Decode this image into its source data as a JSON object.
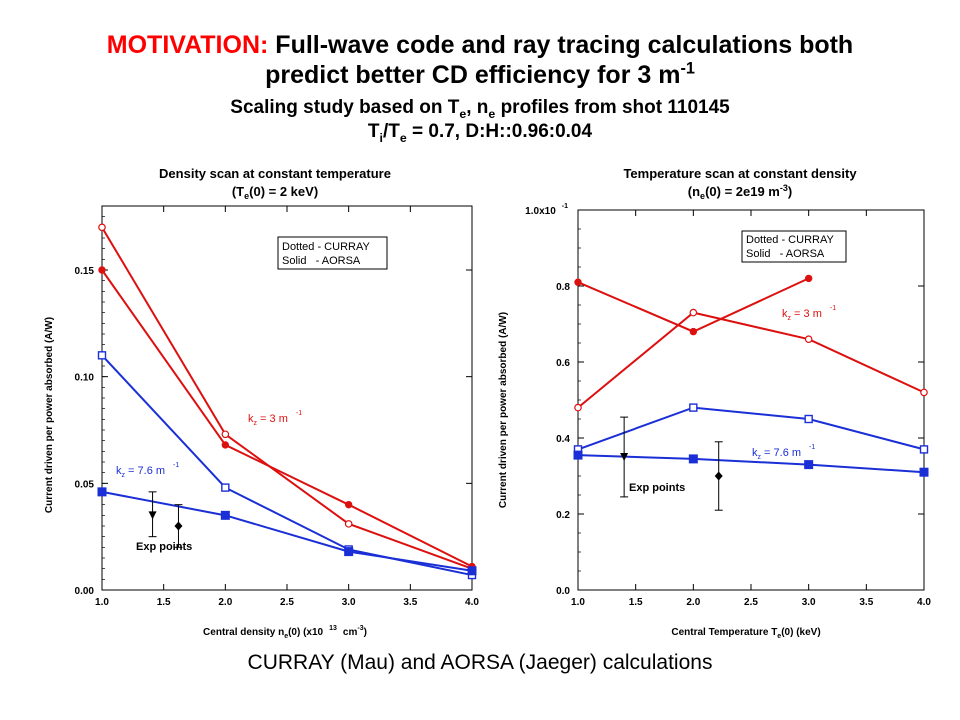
{
  "header": {
    "motivation_label": "MOTIVATION:",
    "title_line1": "Full-wave code and ray tracing calculations both",
    "title_line2": "predict better CD efficiency for 3 m",
    "title_line2_sup": "-1",
    "sub1_a": "Scaling study based on T",
    "sub1_sub1": "e",
    "sub1_b": ", n",
    "sub1_sub2": "e",
    "sub1_c": " profiles from shot 110145",
    "sub2_a": "T",
    "sub2_sub1": "i",
    "sub2_b": "/T",
    "sub2_sub2": "e",
    "sub2_c": " = 0.7, D:H::0.96:0.04"
  },
  "footer": {
    "text": "CURRAY (Mau) and AORSA (Jaeger) calculations"
  },
  "colors": {
    "accent_red": "#ff0000",
    "curray_aorsa_red": "#dd1010",
    "blue": "#1a2fd6"
  },
  "chart_data": [
    {
      "type": "line",
      "title_line1": "Density scan at constant temperature",
      "title_line2": "(T",
      "title_line2_sub": "e",
      "title_line2_rest": "(0) = 2 keV)",
      "xlabel": "Central density n",
      "xlabel_sub": "e",
      "xlabel_rest": "(0) (x10",
      "xlabel_sup": "13",
      "xlabel_unit": "cm",
      "xlabel_unit_sup": "-3",
      "xlabel_close": ")",
      "ylabel": "Current driven per power absorbed (A/W)",
      "xlim": [
        1.0,
        4.0
      ],
      "ylim": [
        0.0,
        0.18
      ],
      "xticks": [
        "1.0",
        "1.5",
        "2.0",
        "2.5",
        "3.0",
        "3.5",
        "4.0"
      ],
      "yticks": [
        "0.00",
        "0.05",
        "0.10",
        "0.15"
      ],
      "legend_line1": "Dotted - CURRAY",
      "legend_line2": "Solid   - AORSA",
      "series": [
        {
          "curve": "red-open",
          "color": "#dd1010",
          "marker": "open-circle",
          "x": [
            1.0,
            2.0,
            3.0,
            4.0
          ],
          "y": [
            0.17,
            0.073,
            0.031,
            0.01
          ]
        },
        {
          "curve": "red-filled",
          "color": "#dd1010",
          "marker": "filled-circle",
          "x": [
            1.0,
            2.0,
            3.0,
            4.0
          ],
          "y": [
            0.15,
            0.068,
            0.04,
            0.011
          ]
        },
        {
          "curve": "blue-open",
          "color": "#1a2fd6",
          "marker": "open-square",
          "x": [
            1.0,
            2.0,
            3.0,
            4.0
          ],
          "y": [
            0.11,
            0.048,
            0.019,
            0.007
          ]
        },
        {
          "curve": "blue-filled",
          "color": "#1a2fd6",
          "marker": "filled-square",
          "x": [
            1.0,
            2.0,
            3.0,
            4.0
          ],
          "y": [
            0.046,
            0.035,
            0.018,
            0.009
          ]
        }
      ],
      "annotations": {
        "k3_text": "k",
        "k3_sub": "z",
        "k3_rest": " = 3 m",
        "k3_sup": "-1",
        "k76_text": "k",
        "k76_sub": "z",
        "k76_rest": " = 7.6 m",
        "k76_sup": "-1",
        "exp_label": "Exp points"
      },
      "exp_points": [
        {
          "marker": "triangle-down",
          "x": 1.41,
          "y": 0.035,
          "err": [
            0.025,
            0.046
          ]
        },
        {
          "marker": "diamond",
          "x": 1.62,
          "y": 0.03,
          "err": [
            0.02,
            0.04
          ]
        }
      ]
    },
    {
      "type": "line",
      "title_line1": "Temperature scan at constant density",
      "title_line2": "(n",
      "title_line2_sub": "e",
      "title_line2_rest": "(0) = 2e19 m",
      "title_line2_sup": "-3",
      "title_line2_close": ")",
      "xlabel": "Central Temperature T",
      "xlabel_sub": "e",
      "xlabel_rest": "(0) (keV)",
      "ylabel": "Current driven per power absorbed (A/W)",
      "xlim": [
        1.0,
        4.0
      ],
      "ylim": [
        0.0,
        1.0
      ],
      "xticks": [
        "1.0",
        "1.5",
        "2.0",
        "2.5",
        "3.0",
        "3.5",
        "4.0"
      ],
      "yticks": [
        "0.0",
        "0.2",
        "0.4",
        "0.6",
        "0.8"
      ],
      "ytop_label": "1.0x10",
      "ytop_sup": "-1",
      "legend_line1": "Dotted - CURRAY",
      "legend_line2": "Solid   - AORSA",
      "series": [
        {
          "curve": "red-open",
          "color": "#dd1010",
          "marker": "open-circle",
          "x": [
            1.0,
            2.0,
            3.0,
            4.0
          ],
          "y": [
            0.48,
            0.73,
            0.66,
            0.52
          ]
        },
        {
          "curve": "red-filled",
          "color": "#dd1010",
          "marker": "filled-circle",
          "x": [
            1.0,
            2.0,
            3.0
          ],
          "y": [
            0.81,
            0.68,
            0.82
          ]
        },
        {
          "curve": "blue-open",
          "color": "#1a2fd6",
          "marker": "open-square",
          "x": [
            1.0,
            2.0,
            3.0,
            4.0
          ],
          "y": [
            0.37,
            0.48,
            0.45,
            0.37
          ]
        },
        {
          "curve": "blue-filled",
          "color": "#1a2fd6",
          "marker": "filled-square",
          "x": [
            1.0,
            2.0,
            3.0,
            4.0
          ],
          "y": [
            0.355,
            0.345,
            0.33,
            0.31
          ]
        }
      ],
      "annotations": {
        "k3_text": "k",
        "k3_sub": "z",
        "k3_rest": " = 3 m",
        "k3_sup": "-1",
        "k76_text": "k",
        "k76_sub": "z",
        "k76_rest": " = 7.6 m",
        "k76_sup": "-1",
        "exp_label": "Exp points"
      },
      "exp_points": [
        {
          "marker": "triangle-down",
          "x": 1.4,
          "y": 0.35,
          "err": [
            0.245,
            0.455
          ]
        },
        {
          "marker": "diamond",
          "x": 2.22,
          "y": 0.3,
          "err": [
            0.21,
            0.39
          ]
        }
      ]
    }
  ]
}
